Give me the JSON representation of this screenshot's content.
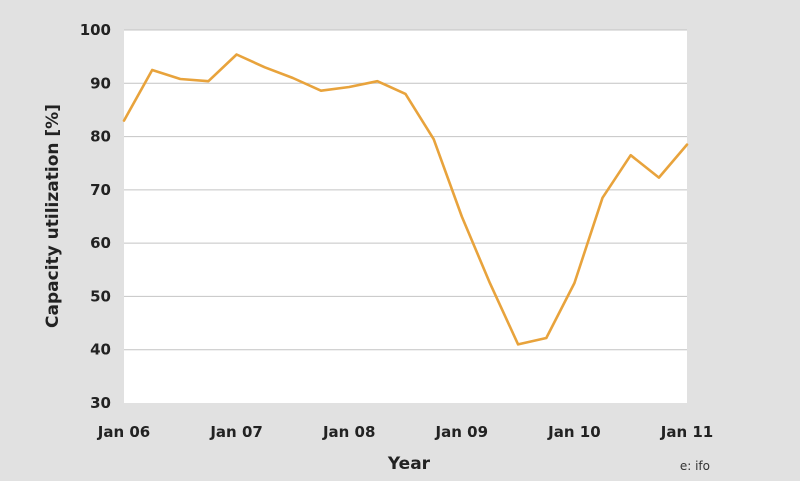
{
  "chart_data": {
    "type": "line",
    "title": "",
    "xlabel": "Year",
    "ylabel": "Capacity utilization [%]",
    "ylim": [
      30,
      100
    ],
    "yticks": [
      30,
      40,
      50,
      60,
      70,
      80,
      90,
      100
    ],
    "xlim": [
      "Jan 06",
      "Jan 11"
    ],
    "xticks": [
      "Jan 06",
      "Jan 07",
      "Jan 08",
      "Jan 09",
      "Jan 10",
      "Jan 11"
    ],
    "grid": "horizontal",
    "legend": "none",
    "color": "#e8a33c",
    "series": [
      {
        "x": [
          "Jan 06",
          "Apr 06",
          "Jul 06",
          "Oct 06",
          "Jan 07",
          "Apr 07",
          "Jul 07",
          "Oct 07",
          "Jan 08",
          "Apr 08",
          "Jul 08",
          "Oct 08",
          "Jan 09",
          "Apr 09",
          "Jul 09",
          "Oct 09",
          "Jan 10",
          "Apr 10",
          "Jul 10",
          "Oct 10",
          "Jan 11"
        ],
        "values": [
          83,
          92.5,
          90.8,
          90.4,
          95.4,
          93,
          91,
          88.6,
          89.3,
          90.4,
          88,
          79.5,
          65,
          52.5,
          41,
          42.2,
          52.5,
          68.5,
          76.5,
          72.3,
          78.5
        ]
      }
    ]
  },
  "source": "e: ifo"
}
